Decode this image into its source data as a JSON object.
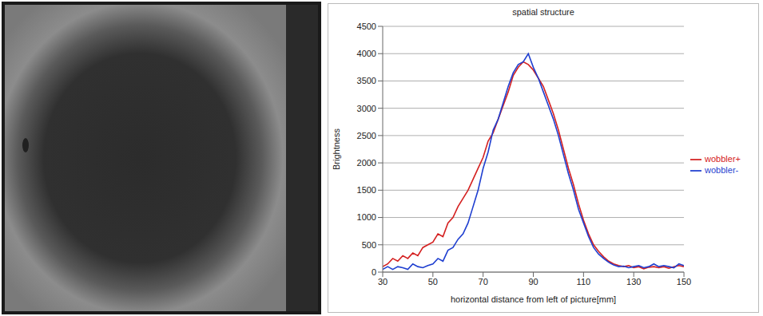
{
  "chart_data": {
    "type": "line",
    "title": "spatial structure",
    "x_label": "horizontal distance from left of picture[mm]",
    "y_label": "Brightness",
    "x": [
      30,
      32,
      34,
      36,
      38,
      40,
      42,
      44,
      46,
      48,
      50,
      52,
      54,
      56,
      58,
      60,
      62,
      64,
      66,
      68,
      70,
      72,
      74,
      76,
      78,
      80,
      82,
      84,
      86,
      88,
      90,
      92,
      94,
      96,
      98,
      100,
      102,
      104,
      106,
      108,
      110,
      112,
      114,
      116,
      118,
      120,
      122,
      124,
      126,
      128,
      130,
      132,
      134,
      136,
      138,
      140,
      142,
      144,
      146,
      148,
      150
    ],
    "series": [
      {
        "name": "wobbler+",
        "color": "#d42020",
        "values": [
          100,
          150,
          250,
          200,
          300,
          250,
          350,
          300,
          450,
          500,
          550,
          700,
          650,
          900,
          1000,
          1200,
          1350,
          1500,
          1700,
          1900,
          2100,
          2400,
          2550,
          2800,
          3050,
          3300,
          3600,
          3750,
          3850,
          3800,
          3700,
          3550,
          3400,
          3150,
          2900,
          2600,
          2250,
          1900,
          1600,
          1250,
          950,
          700,
          500,
          380,
          280,
          200,
          150,
          120,
          100,
          120,
          80,
          100,
          60,
          90,
          100,
          80,
          100,
          70,
          100,
          120,
          100
        ]
      },
      {
        "name": "wobbler-",
        "color": "#1f3fd0",
        "values": [
          50,
          100,
          50,
          100,
          80,
          50,
          150,
          100,
          80,
          120,
          150,
          250,
          200,
          400,
          450,
          600,
          700,
          900,
          1200,
          1500,
          1900,
          2200,
          2600,
          2800,
          3100,
          3400,
          3650,
          3800,
          3850,
          4000,
          3750,
          3550,
          3300,
          3050,
          2800,
          2500,
          2150,
          1800,
          1500,
          1150,
          900,
          650,
          450,
          330,
          250,
          180,
          130,
          100,
          110,
          80,
          100,
          120,
          80,
          100,
          150,
          100,
          120,
          100,
          80,
          150,
          120
        ]
      }
    ],
    "xlim": [
      30,
      150
    ],
    "xticks": [
      30,
      50,
      70,
      90,
      110,
      130,
      150
    ],
    "ylim": [
      0,
      4500
    ],
    "yticks": [
      0,
      500,
      1000,
      1500,
      2000,
      2500,
      3000,
      3500,
      4000,
      4500
    ],
    "grid": true,
    "legend": "right"
  }
}
